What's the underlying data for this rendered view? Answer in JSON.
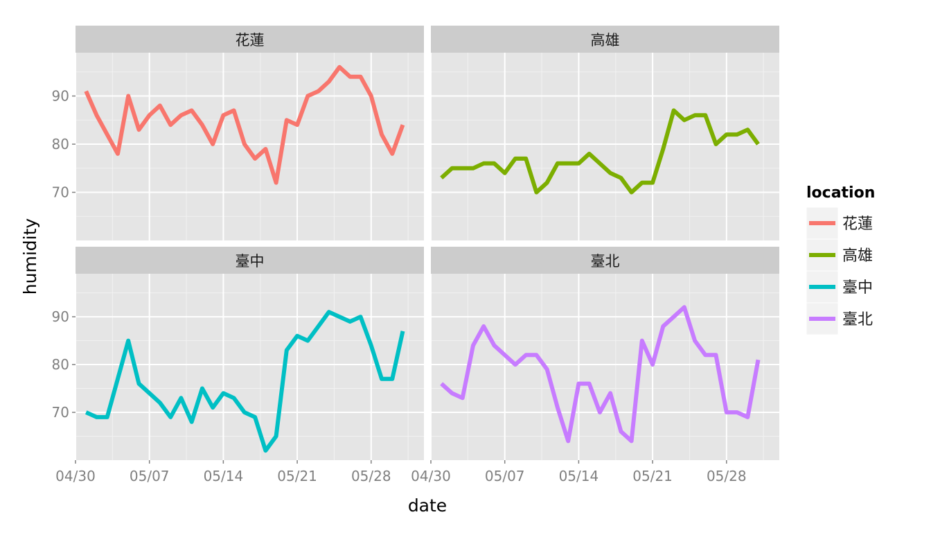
{
  "chart_data": {
    "type": "line",
    "facet_by": "location",
    "xlabel": "date",
    "ylabel": "humidity",
    "x_ticks": [
      "04/30",
      "05/07",
      "05/14",
      "05/21",
      "05/28"
    ],
    "y_ticks": [
      70,
      80,
      90
    ],
    "xlim": [
      "2014-04-30",
      "2014-06-02"
    ],
    "ylim": [
      60,
      99
    ],
    "grid": true,
    "legend": {
      "title": "location",
      "position": "right"
    },
    "dates": [
      "2014-05-01",
      "2014-05-02",
      "2014-05-03",
      "2014-05-04",
      "2014-05-05",
      "2014-05-06",
      "2014-05-07",
      "2014-05-08",
      "2014-05-09",
      "2014-05-10",
      "2014-05-11",
      "2014-05-12",
      "2014-05-13",
      "2014-05-14",
      "2014-05-15",
      "2014-05-16",
      "2014-05-17",
      "2014-05-18",
      "2014-05-19",
      "2014-05-20",
      "2014-05-21",
      "2014-05-22",
      "2014-05-23",
      "2014-05-24",
      "2014-05-25",
      "2014-05-26",
      "2014-05-27",
      "2014-05-28",
      "2014-05-29",
      "2014-05-30",
      "2014-05-31"
    ],
    "series": [
      {
        "name": "花蓮",
        "color": "#F8766D",
        "values": [
          91,
          86,
          82,
          78,
          90,
          83,
          86,
          88,
          84,
          86,
          87,
          84,
          80,
          86,
          87,
          80,
          77,
          79,
          72,
          85,
          84,
          90,
          91,
          93,
          96,
          94,
          94,
          90,
          82,
          78,
          84
        ]
      },
      {
        "name": "高雄",
        "color": "#7CAE00",
        "values": [
          73,
          75,
          75,
          75,
          76,
          76,
          74,
          77,
          77,
          70,
          72,
          76,
          76,
          76,
          78,
          76,
          74,
          73,
          70,
          72,
          72,
          79,
          87,
          85,
          86,
          86,
          80,
          82,
          82,
          83,
          80
        ]
      },
      {
        "name": "臺中",
        "color": "#00BFC4",
        "values": [
          70,
          69,
          69,
          77,
          85,
          76,
          74,
          72,
          69,
          73,
          68,
          75,
          71,
          74,
          73,
          70,
          69,
          62,
          65,
          83,
          86,
          85,
          88,
          91,
          90,
          89,
          90,
          84,
          77,
          77,
          87
        ]
      },
      {
        "name": "臺北",
        "color": "#C77CFF",
        "values": [
          76,
          74,
          73,
          84,
          88,
          84,
          82,
          80,
          82,
          82,
          79,
          71,
          64,
          76,
          76,
          70,
          74,
          66,
          64,
          85,
          80,
          88,
          90,
          92,
          85,
          82,
          82,
          70,
          70,
          69,
          81
        ]
      }
    ]
  }
}
